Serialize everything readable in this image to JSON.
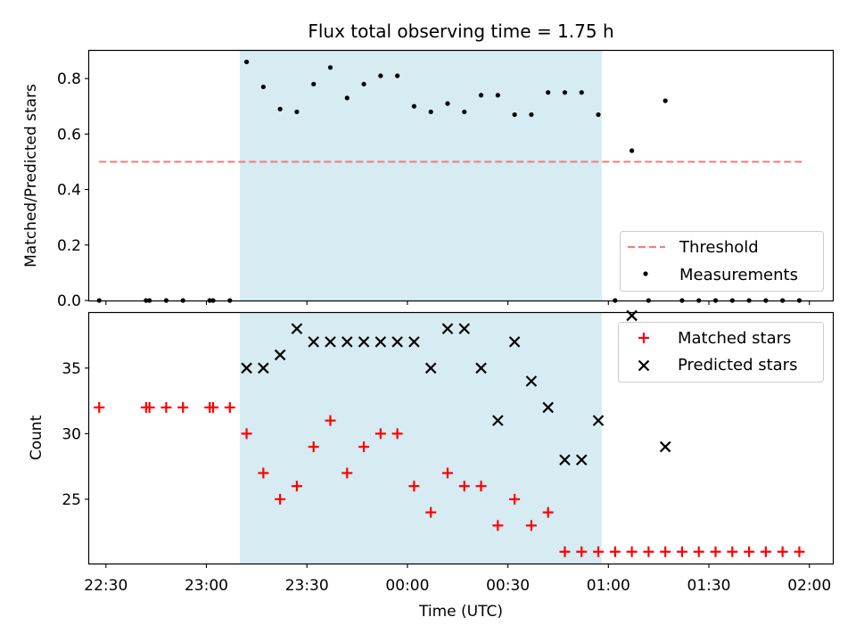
{
  "chart_data": [
    {
      "type": "scatter",
      "title": "Flux total observing time = 1.75 h",
      "xlabel": "",
      "ylabel": "Matched/Predicted stars",
      "ylim": [
        0,
        0.9
      ],
      "yticks": [
        0.0,
        0.2,
        0.4,
        0.6,
        0.8
      ],
      "ytick_labels": [
        "0.0",
        "0.2",
        "0.4",
        "0.6",
        "0.8"
      ],
      "xlim": [
        "22:25",
        "02:07"
      ],
      "shaded_span": [
        "23:10",
        "00:58"
      ],
      "shaded_color": "#add8e6",
      "legend_position": "lower right",
      "threshold": {
        "name": "Threshold",
        "color": "#f08080",
        "style": "dashed",
        "x": [
          "22:28",
          "01:58"
        ],
        "y": 0.5
      },
      "measurements": {
        "name": "Measurements",
        "color": "#000000",
        "x": [
          "22:28",
          "22:42",
          "22:43",
          "22:48",
          "22:53",
          "23:01",
          "23:02",
          "23:07",
          "23:12",
          "23:17",
          "23:22",
          "23:27",
          "23:32",
          "23:37",
          "23:42",
          "23:47",
          "23:52",
          "23:57",
          "00:02",
          "00:07",
          "00:12",
          "00:17",
          "00:22",
          "00:27",
          "00:32",
          "00:37",
          "00:42",
          "00:47",
          "00:52",
          "00:57",
          "01:02",
          "01:07",
          "01:12",
          "01:17",
          "01:22",
          "01:27",
          "01:32",
          "01:37",
          "01:42",
          "01:47",
          "01:52",
          "01:57"
        ],
        "y": [
          0,
          0,
          0,
          0,
          0,
          0,
          0,
          0,
          0.86,
          0.77,
          0.69,
          0.68,
          0.78,
          0.84,
          0.73,
          0.78,
          0.81,
          0.81,
          0.7,
          0.68,
          0.71,
          0.68,
          0.74,
          0.74,
          0.67,
          0.67,
          0.75,
          0.75,
          0.75,
          0.67,
          0,
          0.54,
          0,
          0.72,
          0,
          0,
          0,
          0,
          0,
          0,
          0,
          0
        ]
      }
    },
    {
      "type": "scatter",
      "title": "",
      "xlabel": "Time (UTC)",
      "ylabel": "Count",
      "ylim": [
        20.1,
        39.2
      ],
      "yticks": [
        25,
        30,
        35
      ],
      "ytick_labels": [
        "25",
        "30",
        "35"
      ],
      "xticks": [
        "22:30",
        "23:00",
        "23:30",
        "00:00",
        "00:30",
        "01:00",
        "01:30",
        "02:00"
      ],
      "xtick_labels": [
        "22:30",
        "23:00",
        "23:30",
        "00:00",
        "00:30",
        "01:00",
        "01:30",
        "02:00"
      ],
      "xlim": [
        "22:25",
        "02:07"
      ],
      "shaded_span": [
        "23:10",
        "00:58"
      ],
      "shaded_color": "#add8e6",
      "legend_position": "upper right",
      "series": [
        {
          "name": "Matched stars",
          "marker": "+",
          "color": "#ff0000",
          "x": [
            "22:28",
            "22:42",
            "22:43",
            "22:48",
            "22:53",
            "23:01",
            "23:02",
            "23:07",
            "23:12",
            "23:17",
            "23:22",
            "23:27",
            "23:32",
            "23:37",
            "23:42",
            "23:47",
            "23:52",
            "23:57",
            "00:02",
            "00:07",
            "00:12",
            "00:17",
            "00:22",
            "00:27",
            "00:32",
            "00:37",
            "00:42",
            "00:47",
            "00:52",
            "00:57",
            "01:02",
            "01:07",
            "01:12",
            "01:17",
            "01:22",
            "01:27",
            "01:32",
            "01:37",
            "01:42",
            "01:47",
            "01:52",
            "01:57"
          ],
          "y": [
            32,
            32,
            32,
            32,
            32,
            32,
            32,
            32,
            30,
            27,
            25,
            26,
            29,
            31,
            27,
            29,
            30,
            30,
            26,
            24,
            27,
            26,
            26,
            23,
            25,
            23,
            24,
            21,
            21,
            21,
            21,
            21,
            21,
            21,
            21,
            21,
            21,
            21,
            21,
            21,
            21,
            21
          ]
        },
        {
          "name": "Predicted stars",
          "marker": "x",
          "color": "#000000",
          "x": [
            "23:12",
            "23:17",
            "23:22",
            "23:27",
            "23:32",
            "23:37",
            "23:42",
            "23:47",
            "23:52",
            "23:57",
            "00:02",
            "00:07",
            "00:12",
            "00:17",
            "00:22",
            "00:27",
            "00:32",
            "00:37",
            "00:42",
            "00:47",
            "00:52",
            "00:57",
            "01:07",
            "01:17"
          ],
          "y": [
            35,
            35,
            36,
            38,
            37,
            37,
            37,
            37,
            37,
            37,
            37,
            35,
            38,
            38,
            35,
            31,
            37,
            34,
            32,
            28,
            28,
            31,
            39,
            29
          ]
        }
      ]
    }
  ]
}
